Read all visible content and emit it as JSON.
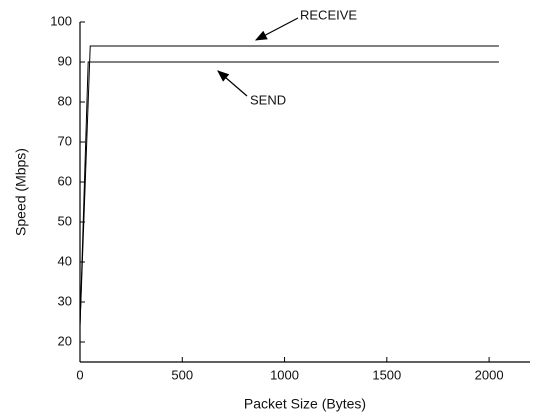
{
  "chart_data": {
    "type": "line",
    "x_label": "Packet Size (Bytes)",
    "y_label": "Speed (Mbps)",
    "xlim": [
      0,
      2200
    ],
    "ylim": [
      15,
      100
    ],
    "xticks": [
      0,
      500,
      1000,
      1500,
      2000
    ],
    "yticks": [
      20,
      30,
      40,
      50,
      60,
      70,
      80,
      90,
      100
    ],
    "series": [
      {
        "name": "RECEIVE",
        "color": "#000000",
        "x": [
          0,
          50,
          2048
        ],
        "values": [
          24,
          94,
          94
        ]
      },
      {
        "name": "SEND",
        "color": "#000000",
        "x": [
          0,
          40,
          2048
        ],
        "values": [
          24,
          90,
          90
        ]
      }
    ],
    "annotations": [
      "RECEIVE",
      "SEND"
    ]
  }
}
